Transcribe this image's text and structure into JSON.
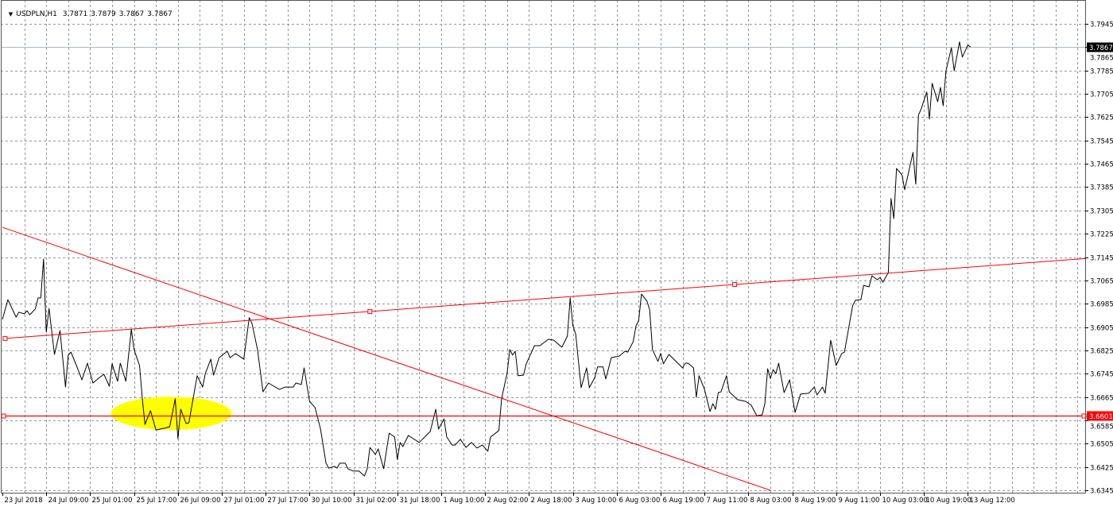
{
  "header": {
    "menu_icon": "triangle-down-icon",
    "symbol": "USDPLN,H1",
    "ohlc": [
      "3.7871",
      "3.7879",
      "3.7867",
      "3.7867"
    ]
  },
  "colors": {
    "line": "#000000",
    "trendline": "#ff0000",
    "grid": "#8c97a8",
    "highlight": "#ffff00",
    "bid_line": "#a9b4c2"
  },
  "chart_data": {
    "type": "line",
    "symbol": "USDPLN",
    "timeframe": "H1",
    "grid": true,
    "ylim": [
      3.6345,
      3.7945
    ],
    "y_ticks": [
      "3.7945",
      "3.7865",
      "3.7785",
      "3.7705",
      "3.7625",
      "3.7545",
      "3.7465",
      "3.7385",
      "3.7305",
      "3.7225",
      "3.7145",
      "3.7065",
      "3.6985",
      "3.6905",
      "3.6825",
      "3.6745",
      "3.6665",
      "3.6585",
      "3.6505",
      "3.6425",
      "3.6345"
    ],
    "x_ticks": [
      "23 Jul 2018",
      "24 Jul 09:00",
      "25 Jul 01:00",
      "25 Jul 17:00",
      "26 Jul 09:00",
      "27 Jul 01:00",
      "27 Jul 17:00",
      "30 Jul 10:00",
      "31 Jul 02:00",
      "31 Jul 18:00",
      "1 Aug 10:00",
      "2 Aug 02:00",
      "2 Aug 18:00",
      "3 Aug 10:00",
      "6 Aug 03:00",
      "6 Aug 19:00",
      "7 Aug 11:00",
      "8 Aug 03:00",
      "8 Aug 19:00",
      "9 Aug 11:00",
      "10 Aug 03:00",
      "10 Aug 19:00",
      "13 Aug 12:00"
    ],
    "bars_per_x_tick": 16,
    "series": [
      {
        "points": [
          [
            0,
            3.6931
          ],
          [
            2,
            3.6999
          ],
          [
            5,
            3.6939
          ],
          [
            6,
            3.6956
          ],
          [
            8,
            3.695
          ],
          [
            9,
            3.6961
          ],
          [
            10,
            3.6947
          ],
          [
            12,
            3.6967
          ],
          [
            13,
            3.7005
          ],
          [
            14,
            3.7005
          ],
          [
            15,
            3.7138
          ],
          [
            16,
            3.6888
          ],
          [
            17,
            3.6969
          ],
          [
            19,
            3.6811
          ],
          [
            21,
            3.6893
          ],
          [
            23,
            3.6699
          ],
          [
            24,
            3.6809
          ],
          [
            25,
            3.6819
          ],
          [
            27,
            3.6773
          ],
          [
            29,
            3.6724
          ],
          [
            31,
            3.6781
          ],
          [
            33,
            3.6713
          ],
          [
            35,
            3.6729
          ],
          [
            37,
            3.6743
          ],
          [
            39,
            3.6702
          ],
          [
            40,
            3.6779
          ],
          [
            42,
            3.6719
          ],
          [
            43,
            3.6781
          ],
          [
            45,
            3.6719
          ],
          [
            47,
            3.6898
          ],
          [
            48,
            3.6828
          ],
          [
            50,
            3.6773
          ],
          [
            51,
            3.6659
          ],
          [
            52,
            3.6571
          ],
          [
            54,
            3.6618
          ],
          [
            56,
            3.6552
          ],
          [
            59,
            3.6558
          ],
          [
            61,
            3.6563
          ],
          [
            63,
            3.6659
          ],
          [
            64,
            3.6522
          ],
          [
            65,
            3.6623
          ],
          [
            67,
            3.6574
          ],
          [
            68,
            3.6577
          ],
          [
            71,
            3.6738
          ],
          [
            73,
            3.6699
          ],
          [
            74,
            3.6746
          ],
          [
            76,
            3.6795
          ],
          [
            77,
            3.674
          ],
          [
            79,
            3.68
          ],
          [
            82,
            3.6822
          ],
          [
            83,
            3.68
          ],
          [
            85,
            3.6814
          ],
          [
            88,
            3.6795
          ],
          [
            90,
            3.6937
          ],
          [
            91,
            3.6918
          ],
          [
            93,
            3.6828
          ],
          [
            95,
            3.6683
          ],
          [
            97,
            3.6713
          ],
          [
            101,
            3.6691
          ],
          [
            103,
            3.6699
          ],
          [
            106,
            3.6699
          ],
          [
            107,
            3.6713
          ],
          [
            109,
            3.6708
          ],
          [
            110,
            3.6765
          ],
          [
            112,
            3.665
          ],
          [
            114,
            3.6629
          ],
          [
            116,
            3.6555
          ],
          [
            118,
            3.6438
          ],
          [
            119,
            3.6421
          ],
          [
            121,
            3.6427
          ],
          [
            122,
            3.6421
          ],
          [
            123,
            3.6438
          ],
          [
            125,
            3.6438
          ],
          [
            126,
            3.6419
          ],
          [
            128,
            3.6411
          ],
          [
            130,
            3.6411
          ],
          [
            132,
            3.6394
          ],
          [
            133,
            3.6419
          ],
          [
            134,
            3.6492
          ],
          [
            136,
            3.6468
          ],
          [
            137,
            3.6487
          ],
          [
            139,
            3.6419
          ],
          [
            141,
            3.6541
          ],
          [
            143,
            3.6528
          ],
          [
            144,
            3.6451
          ],
          [
            145,
            3.6509
          ],
          [
            146,
            3.6495
          ],
          [
            148,
            3.6533
          ],
          [
            152,
            3.6509
          ],
          [
            156,
            3.6547
          ],
          [
            158,
            3.6623
          ],
          [
            159,
            3.6555
          ],
          [
            161,
            3.659
          ],
          [
            162,
            3.6528
          ],
          [
            164,
            3.65
          ],
          [
            165,
            3.65
          ],
          [
            167,
            3.652
          ],
          [
            169,
            3.6492
          ],
          [
            171,
            3.6509
          ],
          [
            173,
            3.649
          ],
          [
            175,
            3.65
          ],
          [
            177,
            3.6479
          ],
          [
            178,
            3.6528
          ],
          [
            181,
            3.655
          ],
          [
            182,
            3.6659
          ],
          [
            184,
            3.6746
          ],
          [
            185,
            3.6828
          ],
          [
            186,
            3.6809
          ],
          [
            187,
            3.6822
          ],
          [
            188,
            3.6738
          ],
          [
            190,
            3.674
          ],
          [
            191,
            3.6779
          ],
          [
            194,
            3.6841
          ],
          [
            196,
            3.6841
          ],
          [
            199,
            3.6863
          ],
          [
            201,
            3.686
          ],
          [
            204,
            3.6836
          ],
          [
            206,
            3.6874
          ],
          [
            207,
            3.7005
          ],
          [
            208,
            3.6909
          ],
          [
            209,
            3.6882
          ],
          [
            211,
            3.6697
          ],
          [
            213,
            3.6765
          ],
          [
            214,
            3.6697
          ],
          [
            216,
            3.6732
          ],
          [
            217,
            3.6768
          ],
          [
            219,
            3.6768
          ],
          [
            220,
            3.6727
          ],
          [
            222,
            3.68
          ],
          [
            225,
            3.6806
          ],
          [
            227,
            3.6822
          ],
          [
            228,
            3.6819
          ],
          [
            230,
            3.6855
          ],
          [
            231,
            3.6909
          ],
          [
            232,
            3.6928
          ],
          [
            233,
            3.7018
          ],
          [
            235,
            3.6994
          ],
          [
            236,
            3.6964
          ],
          [
            237,
            3.6828
          ],
          [
            239,
            3.6787
          ],
          [
            240,
            3.6814
          ],
          [
            241,
            3.6779
          ],
          [
            243,
            3.6811
          ],
          [
            248,
            3.6765
          ],
          [
            249,
            3.6781
          ],
          [
            250,
            3.6781
          ],
          [
            252,
            3.6765
          ],
          [
            253,
            3.6664
          ],
          [
            254,
            3.6738
          ],
          [
            256,
            3.6691
          ],
          [
            258,
            3.6615
          ],
          [
            259,
            3.6642
          ],
          [
            260,
            3.6623
          ],
          [
            261,
            3.668
          ],
          [
            262,
            3.6683
          ],
          [
            264,
            3.6738
          ],
          [
            265,
            3.6683
          ],
          [
            268,
            3.6656
          ],
          [
            271,
            3.665
          ],
          [
            273,
            3.6637
          ],
          [
            275,
            3.6601
          ],
          [
            277,
            3.6604
          ],
          [
            278,
            3.6642
          ],
          [
            279,
            3.6762
          ],
          [
            280,
            3.6729
          ],
          [
            281,
            3.6759
          ],
          [
            282,
            3.6745
          ],
          [
            283,
            3.6781
          ],
          [
            285,
            3.668
          ],
          [
            287,
            3.6724
          ],
          [
            289,
            3.6612
          ],
          [
            291,
            3.6675
          ],
          [
            294,
            3.6678
          ],
          [
            296,
            3.6699
          ],
          [
            297,
            3.6672
          ],
          [
            299,
            3.6699
          ],
          [
            300,
            3.6678
          ],
          [
            302,
            3.686
          ],
          [
            304,
            3.6773
          ],
          [
            306,
            3.6814
          ],
          [
            307,
            3.6819
          ],
          [
            310,
            3.6978
          ],
          [
            311,
            3.6997
          ],
          [
            313,
            3.6999
          ],
          [
            314,
            3.7048
          ],
          [
            316,
            3.7043
          ],
          [
            317,
            3.7081
          ],
          [
            319,
            3.7067
          ],
          [
            320,
            3.7075
          ],
          [
            321,
            3.7059
          ],
          [
            323,
            3.7092
          ],
          [
            324,
            3.7346
          ],
          [
            325,
            3.7277
          ],
          [
            326,
            3.7449
          ],
          [
            328,
            3.7427
          ],
          [
            329,
            3.7376
          ],
          [
            332,
            3.7504
          ],
          [
            333,
            3.7395
          ],
          [
            334,
            3.7632
          ],
          [
            335,
            3.7654
          ],
          [
            337,
            3.7711
          ],
          [
            338,
            3.7618
          ],
          [
            339,
            3.7741
          ],
          [
            341,
            3.7678
          ],
          [
            342,
            3.7727
          ],
          [
            343,
            3.7664
          ],
          [
            344,
            3.7782
          ],
          [
            346,
            3.7863
          ],
          [
            347,
            3.7784
          ],
          [
            349,
            3.7883
          ],
          [
            350,
            3.7831
          ],
          [
            352,
            3.7872
          ],
          [
            353,
            3.7866
          ]
        ]
      }
    ],
    "objects": {
      "horizontal_line": {
        "price": 3.6601,
        "label": "3.6601"
      },
      "bid_line": {
        "price": 3.7867,
        "label": "3.7867"
      },
      "trendline_down": {
        "from": [
          0,
          3.7247
        ],
        "to": [
          280,
          3.6345
        ]
      },
      "trendline_up": {
        "anchors": [
          [
            1,
            3.6866
          ],
          [
            134,
            3.6958
          ],
          [
            267,
            3.7051
          ]
        ],
        "ray": true
      },
      "highlight_ellipse": {
        "center": [
          61.5,
          3.6609
        ],
        "half_width_bars": 22,
        "half_height_price": 0.0057
      }
    }
  }
}
